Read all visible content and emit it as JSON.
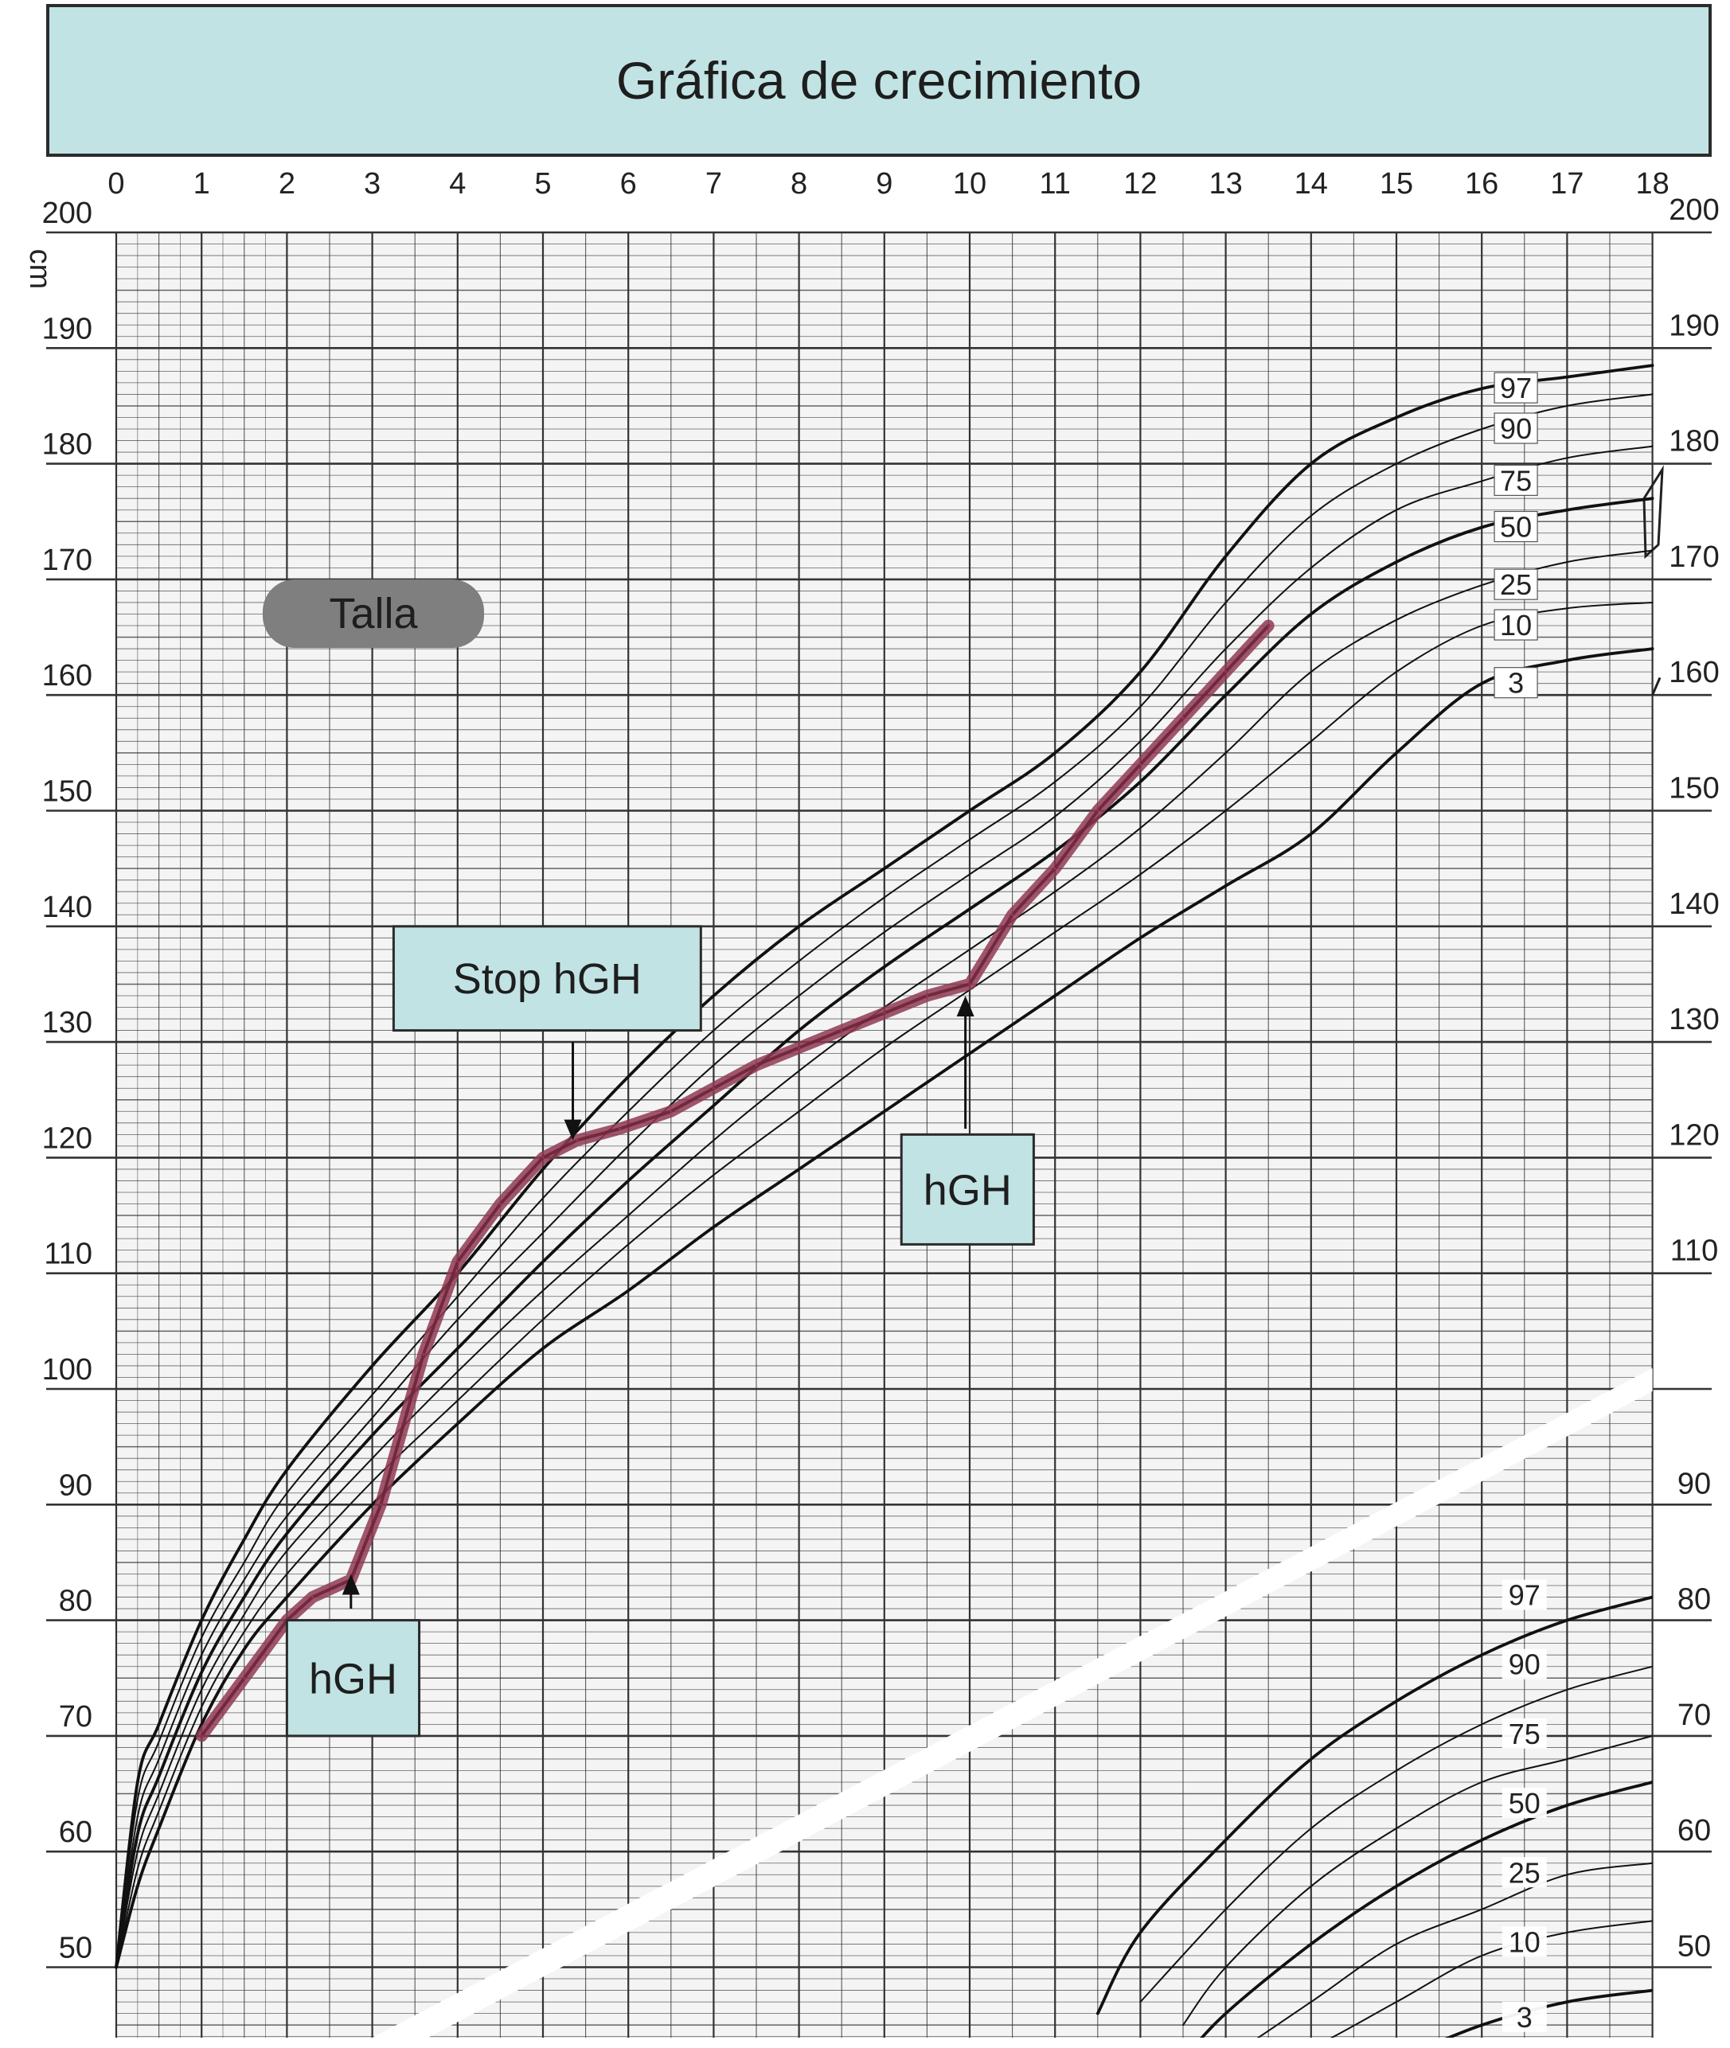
{
  "chart_data": {
    "type": "line",
    "title": "Gráfica de crecimiento",
    "ylabel": "cm",
    "section_label": "Talla",
    "x_ticks": [
      0,
      1,
      2,
      3,
      4,
      5,
      6,
      7,
      8,
      9,
      10,
      11,
      12,
      13,
      14,
      15,
      16,
      17,
      18
    ],
    "y_ticks_left": [
      200,
      190,
      180,
      170,
      160,
      150,
      140,
      130,
      120,
      110,
      100,
      90,
      80,
      70,
      60,
      50
    ],
    "y_ticks_right": [
      200,
      190,
      180,
      170,
      160,
      150,
      140,
      130,
      120,
      110,
      90,
      80,
      70,
      60,
      50
    ],
    "xlim": [
      0,
      18
    ],
    "ylim": [
      45,
      200
    ],
    "grid": true,
    "percentile_labels": [
      "97",
      "90",
      "75",
      "50",
      "25",
      "10",
      "3"
    ],
    "percentiles_height": [
      {
        "name": "97",
        "x": [
          0,
          0.25,
          0.5,
          1,
          1.5,
          2,
          3,
          4,
          5,
          6,
          7,
          8,
          9,
          10,
          11,
          12,
          13,
          14,
          15,
          16,
          17,
          18
        ],
        "y": [
          50,
          66,
          71,
          80,
          87,
          93,
          102,
          110,
          119,
          127,
          134,
          140,
          145,
          150,
          155,
          162,
          172,
          180,
          184,
          186.5,
          187.5,
          188.5
        ]
      },
      {
        "name": "90",
        "x": [
          0,
          0.25,
          0.5,
          1,
          1.5,
          2,
          3,
          4,
          5,
          6,
          7,
          8,
          9,
          10,
          11,
          12,
          13,
          14,
          15,
          16,
          17,
          18
        ],
        "y": [
          50,
          64.5,
          69.5,
          78.5,
          85,
          91,
          99.5,
          108,
          116.5,
          124,
          131,
          137,
          142.5,
          147.5,
          152.5,
          159,
          168,
          175.5,
          180,
          183,
          185,
          186
        ]
      },
      {
        "name": "75",
        "x": [
          0,
          0.25,
          0.5,
          1,
          1.5,
          2,
          3,
          4,
          5,
          6,
          7,
          8,
          9,
          10,
          11,
          12,
          13,
          14,
          15,
          16,
          17,
          18
        ],
        "y": [
          50,
          63,
          68,
          77,
          83.5,
          89,
          97.5,
          106,
          113.5,
          121,
          128,
          134,
          139.5,
          144.5,
          149.5,
          156,
          164,
          171,
          176,
          178.5,
          180.5,
          181.5
        ]
      },
      {
        "name": "50",
        "x": [
          0,
          0.25,
          0.5,
          1,
          1.5,
          2,
          3,
          4,
          5,
          6,
          7,
          8,
          9,
          10,
          11,
          12,
          13,
          14,
          15,
          16,
          17,
          18
        ],
        "y": [
          50,
          61.5,
          66.5,
          75.5,
          82,
          87.5,
          96,
          103.5,
          111,
          118,
          124.5,
          131,
          136.5,
          141.5,
          146.5,
          152.5,
          160,
          167,
          171.5,
          174.5,
          176,
          177
        ]
      },
      {
        "name": "25",
        "x": [
          0,
          0.25,
          0.5,
          1,
          1.5,
          2,
          3,
          4,
          5,
          6,
          7,
          8,
          9,
          10,
          11,
          12,
          13,
          14,
          15,
          16,
          17,
          18
        ],
        "y": [
          50,
          60,
          65,
          74,
          80.5,
          86,
          94,
          101.5,
          108.5,
          115,
          121.5,
          127.5,
          133,
          138,
          143,
          148.5,
          155,
          162,
          166.5,
          169.5,
          171.5,
          172.5
        ]
      },
      {
        "name": "10",
        "x": [
          0,
          0.25,
          0.5,
          1,
          1.5,
          2,
          3,
          4,
          5,
          6,
          7,
          8,
          9,
          10,
          11,
          12,
          13,
          14,
          15,
          16,
          17,
          18
        ],
        "y": [
          50,
          58.5,
          63.5,
          72.5,
          79,
          84,
          92,
          99,
          106,
          112.5,
          118.5,
          124,
          129.5,
          134.5,
          139.5,
          144.5,
          150,
          156,
          162,
          166,
          167.5,
          168
        ]
      },
      {
        "name": "3",
        "x": [
          0,
          0.25,
          0.5,
          1,
          1.5,
          2,
          3,
          4,
          5,
          6,
          7,
          8,
          9,
          10,
          11,
          12,
          13,
          14,
          15,
          16,
          17,
          18
        ],
        "y": [
          50,
          57,
          62,
          71,
          77.5,
          82,
          90,
          97,
          103.5,
          108.5,
          114,
          119,
          124,
          129,
          134,
          139,
          143.5,
          148,
          155,
          161,
          163,
          164
        ]
      }
    ],
    "percentiles_weight": [
      {
        "name": "97",
        "x": [
          11.5,
          12,
          13,
          14,
          15,
          16,
          17,
          18
        ],
        "y": [
          46,
          53,
          61,
          68,
          73,
          77,
          80,
          82
        ]
      },
      {
        "name": "90",
        "x": [
          12,
          13,
          14,
          15,
          16,
          17,
          18
        ],
        "y": [
          47,
          55,
          62,
          67,
          71,
          74,
          76
        ]
      },
      {
        "name": "75",
        "x": [
          12.5,
          13,
          14,
          15,
          16,
          17,
          18
        ],
        "y": [
          45,
          50,
          57,
          62,
          66,
          68,
          70
        ]
      },
      {
        "name": "50",
        "x": [
          12.5,
          13,
          14,
          15,
          16,
          17,
          18
        ],
        "y": [
          42,
          46,
          52,
          57,
          61,
          64,
          66
        ]
      },
      {
        "name": "25",
        "x": [
          13,
          14,
          15,
          16,
          17,
          18
        ],
        "y": [
          42,
          47,
          52,
          55,
          58,
          59
        ]
      },
      {
        "name": "10",
        "x": [
          13.5,
          14,
          15,
          16,
          17,
          18
        ],
        "y": [
          42,
          43,
          47,
          51,
          53,
          54
        ]
      },
      {
        "name": "3",
        "x": [
          14,
          15,
          16,
          17,
          18
        ],
        "y": [
          39,
          42,
          45,
          47,
          48
        ]
      }
    ],
    "weight_band_label_y": [
      82,
      76,
      70,
      64,
      58,
      52,
      45.5
    ],
    "weight_right_ticks_y": [
      90,
      80,
      70,
      60,
      50
    ],
    "patient_series": {
      "x": [
        1,
        1.5,
        2,
        2.3,
        2.75,
        3.1,
        3.6,
        4,
        4.5,
        5,
        5.4,
        5.9,
        6.5,
        7,
        7.5,
        8,
        8.5,
        9,
        9.5,
        10,
        10.5,
        11,
        11.5,
        12,
        12.5,
        13,
        13.5
      ],
      "y": [
        70,
        75,
        80,
        82,
        83.5,
        90,
        103,
        111,
        116,
        120,
        121.5,
        122.5,
        124,
        126,
        128,
        129.5,
        131,
        132.5,
        134,
        135,
        141,
        145,
        150,
        154,
        158,
        162,
        166
      ]
    },
    "annotations": [
      {
        "text": "hGH",
        "box_x": [
          2,
          3.55
        ],
        "box_y": [
          70,
          80
        ],
        "arrow_x": 2.75,
        "arrow_from_y": 81,
        "arrow_to_y": 84
      },
      {
        "text": "Stop hGH",
        "box_x": [
          3.25,
          6.85
        ],
        "box_y": [
          131,
          140
        ],
        "arrow_x": 5.35,
        "arrow_from_y": 130,
        "arrow_to_y": 121.5
      },
      {
        "text": "hGH",
        "box_x": [
          9.2,
          10.75
        ],
        "box_y": [
          112.5,
          122
        ],
        "arrow_x": 9.95,
        "arrow_from_y": 122.5,
        "arrow_to_y": 134
      }
    ],
    "colors": {
      "title_bg": "#c2e3e4",
      "annotation_bg": "#c2e3e4",
      "label_bg": "#7f7f7f",
      "patient_line": "#8f3a53",
      "grid": "#333333"
    }
  }
}
